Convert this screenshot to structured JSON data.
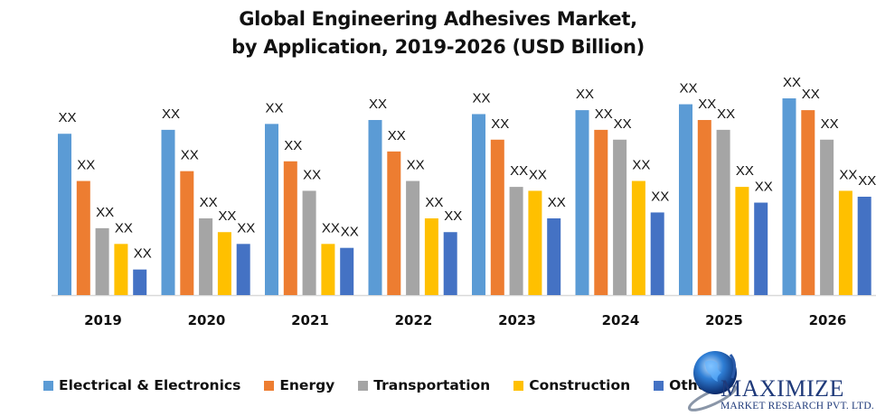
{
  "chart_data": {
    "type": "bar",
    "title_line1": "Global Engineering Adhesives Market,",
    "title_line2": "by Application, 2019-2026 (USD Billion)",
    "xlabel": "",
    "ylabel": "",
    "ylim": [
      0,
      100
    ],
    "grid": false,
    "legend_position": "bottom",
    "value_note": "Actual values hidden; bar labels shown as XX. Values are relative estimates on a 0-100 scale.",
    "categories": [
      "2019",
      "2020",
      "2021",
      "2022",
      "2023",
      "2024",
      "2025",
      "2026"
    ],
    "series": [
      {
        "name": "Electrical & Electronics",
        "color": "#5B9BD5",
        "values": [
          82,
          84,
          87,
          89,
          92,
          94,
          97,
          100
        ],
        "labels": [
          "XX",
          "XX",
          "XX",
          "XX",
          "XX",
          "XX",
          "XX",
          "XX"
        ]
      },
      {
        "name": "Energy",
        "color": "#ED7D31",
        "values": [
          58,
          63,
          68,
          73,
          79,
          84,
          89,
          94
        ],
        "labels": [
          "XX",
          "XX",
          "XX",
          "XX",
          "XX",
          "XX",
          "XX",
          "XX"
        ]
      },
      {
        "name": "Transportation",
        "color": "#A5A5A5",
        "values": [
          34,
          39,
          53,
          58,
          55,
          79,
          84,
          79
        ],
        "labels": [
          "XX",
          "XX",
          "XX",
          "XX",
          "XX",
          "XX",
          "XX",
          "XX"
        ]
      },
      {
        "name": "Construction",
        "color": "#FFC000",
        "values": [
          26,
          32,
          26,
          39,
          53,
          58,
          55,
          53
        ],
        "labels": [
          "XX",
          "XX",
          "XX",
          "XX",
          "XX",
          "XX",
          "XX",
          "XX"
        ]
      },
      {
        "name": "Others",
        "color": "#4472C4",
        "values": [
          13,
          26,
          24,
          32,
          39,
          42,
          47,
          50
        ],
        "labels": [
          "XX",
          "XX",
          "XX",
          "XX",
          "XX",
          "XX",
          "XX",
          "XX"
        ]
      }
    ]
  },
  "logo": {
    "name": "MAXIMIZE",
    "subtitle": "MARKET RESEARCH PVT. LTD.",
    "icon": "globe-icon"
  }
}
